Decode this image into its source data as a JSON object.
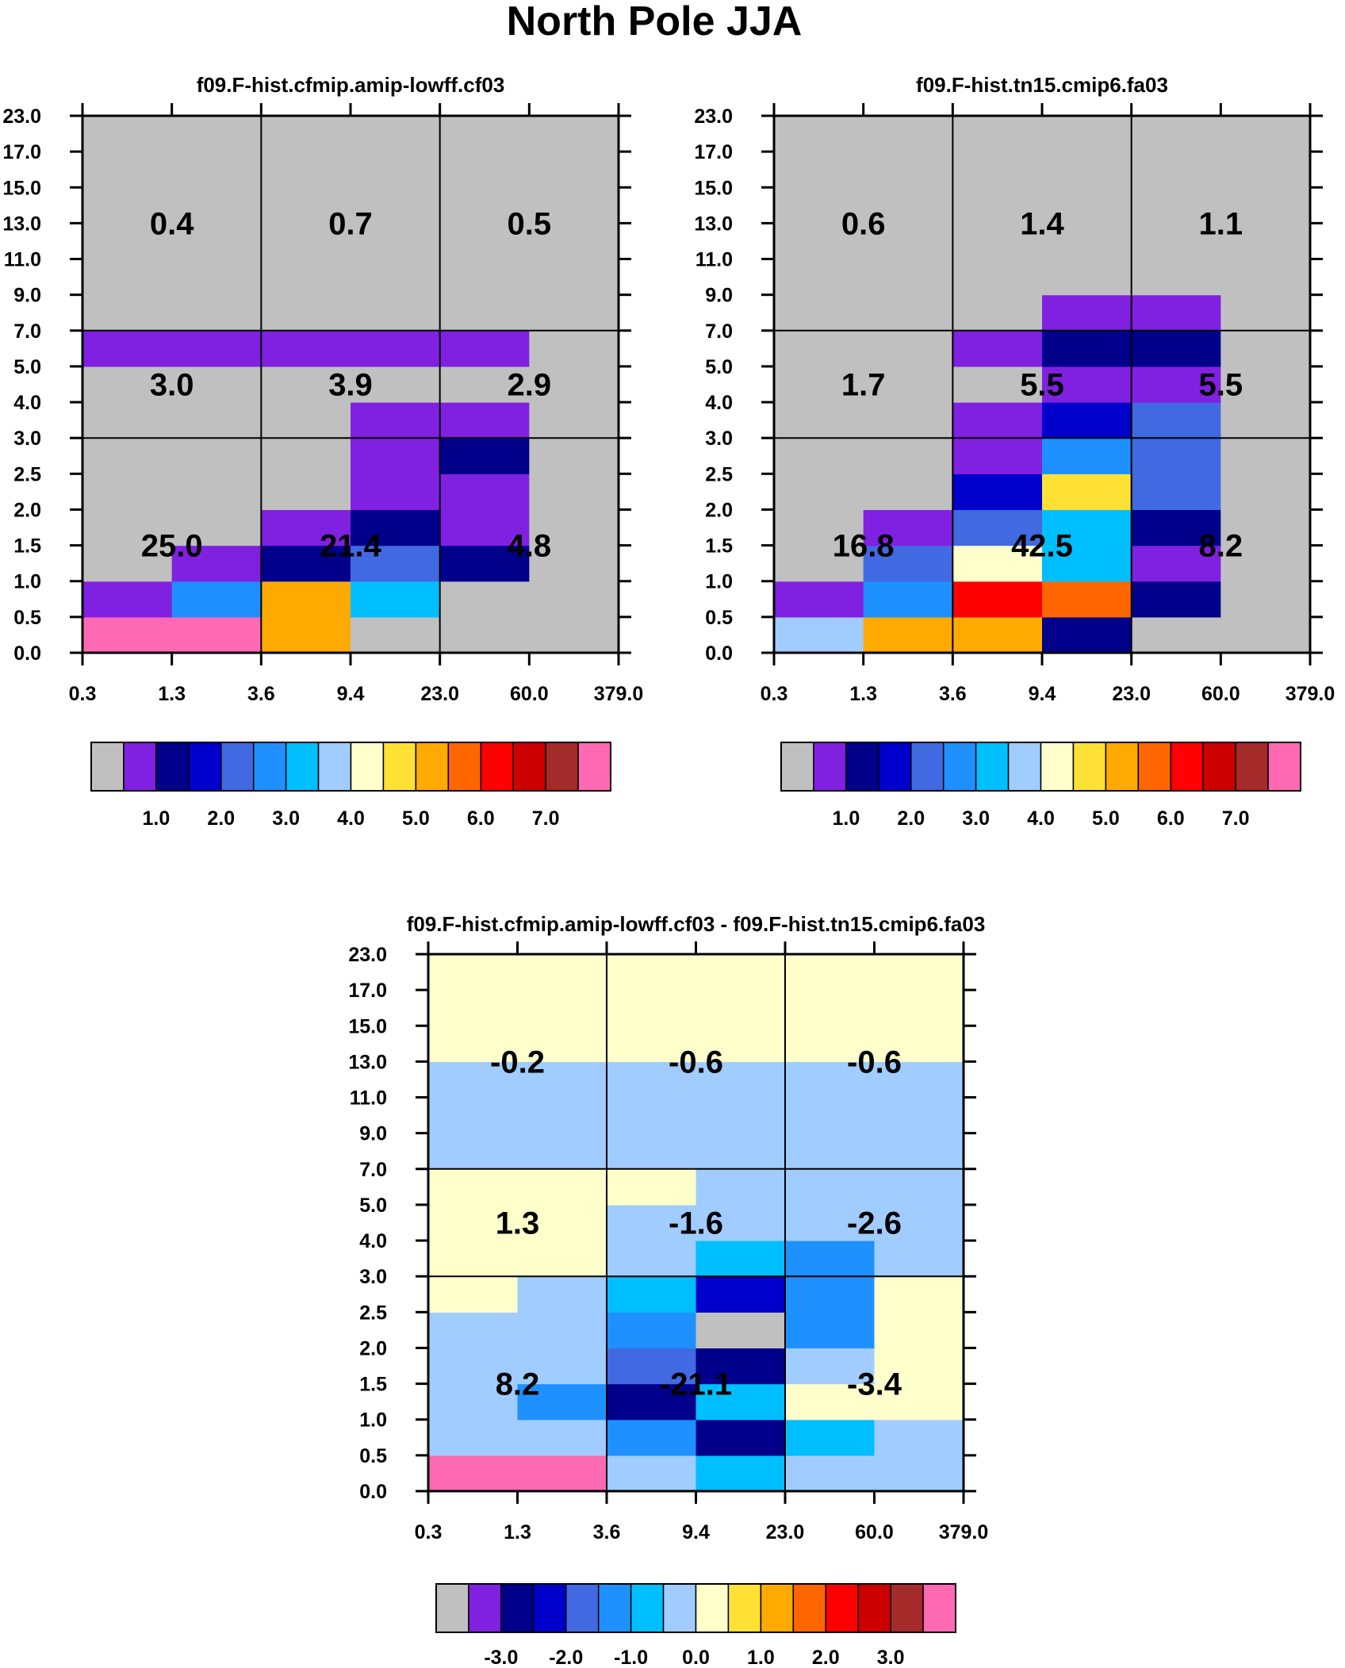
{
  "figure_title": "North Pole JJA",
  "palette": {
    "gray": "#C0C0C0",
    "violet": "#8020E0",
    "navy": "#00008B",
    "blue": "#0000CD",
    "royal": "#4169E1",
    "dodger": "#1E90FF",
    "sky": "#00BFFF",
    "light": "#A0CCFF",
    "cream": "#FFFFCC",
    "yellow": "#FFE135",
    "amber": "#FFAA00",
    "orange": "#FF6600",
    "red": "#FF0000",
    "crimson": "#CC0000",
    "brown": "#A52A2A",
    "pink": "#FF69B4"
  },
  "chart_data": [
    {
      "type": "heatmap",
      "title": "f09.F-hist.cfmip.amip-lowff.cf03",
      "x_tick_labels": [
        "0.3",
        "1.3",
        "3.6",
        "9.4",
        "23.0",
        "60.0",
        "379.0"
      ],
      "y_tick_labels": [
        "0.0",
        "0.5",
        "1.0",
        "1.5",
        "2.0",
        "2.5",
        "3.0",
        "4.0",
        "5.0",
        "7.0",
        "9.0",
        "11.0",
        "13.0",
        "15.0",
        "17.0",
        "23.0"
      ],
      "cells": [
        [
          "pink",
          "pink",
          "amber",
          "gray",
          "gray",
          "gray"
        ],
        [
          "violet",
          "dodger",
          "amber",
          "sky",
          "gray",
          "gray"
        ],
        [
          "gray",
          "violet",
          "navy",
          "royal",
          "navy",
          "gray"
        ],
        [
          "gray",
          "gray",
          "violet",
          "navy",
          "violet",
          "gray"
        ],
        [
          "gray",
          "gray",
          "gray",
          "violet",
          "violet",
          "gray"
        ],
        [
          "gray",
          "gray",
          "gray",
          "violet",
          "navy",
          "gray"
        ],
        [
          "gray",
          "gray",
          "gray",
          "violet",
          "violet",
          "gray"
        ],
        [
          "gray",
          "gray",
          "gray",
          "gray",
          "gray",
          "gray"
        ],
        [
          "violet",
          "violet",
          "violet",
          "violet",
          "violet",
          "gray"
        ],
        [
          "gray",
          "gray",
          "gray",
          "gray",
          "gray",
          "gray"
        ],
        [
          "gray",
          "gray",
          "gray",
          "gray",
          "gray",
          "gray"
        ],
        [
          "gray",
          "gray",
          "gray",
          "gray",
          "gray",
          "gray"
        ],
        [
          "gray",
          "gray",
          "gray",
          "gray",
          "gray",
          "gray"
        ],
        [
          "gray",
          "gray",
          "gray",
          "gray",
          "gray",
          "gray"
        ],
        [
          "gray",
          "gray",
          "gray",
          "gray",
          "gray",
          "gray"
        ]
      ],
      "region_totals": [
        {
          "label": "25.0",
          "col": 0,
          "band": "low"
        },
        {
          "label": "21.4",
          "col": 1,
          "band": "low"
        },
        {
          "label": "4.8",
          "col": 2,
          "band": "low"
        },
        {
          "label": "3.0",
          "col": 0,
          "band": "mid"
        },
        {
          "label": "3.9",
          "col": 1,
          "band": "mid"
        },
        {
          "label": "2.9",
          "col": 2,
          "band": "mid"
        },
        {
          "label": "0.4",
          "col": 0,
          "band": "high"
        },
        {
          "label": "0.7",
          "col": 1,
          "band": "high"
        },
        {
          "label": "0.5",
          "col": 2,
          "band": "high"
        }
      ],
      "colorbar": {
        "colors": [
          "gray",
          "violet",
          "navy",
          "blue",
          "royal",
          "dodger",
          "sky",
          "light",
          "cream",
          "yellow",
          "amber",
          "orange",
          "red",
          "crimson",
          "brown",
          "pink"
        ],
        "labels": [
          "1.0",
          "2.0",
          "3.0",
          "4.0",
          "5.0",
          "6.0",
          "7.0"
        ],
        "label_start_boundary": 2,
        "label_step": 2
      }
    },
    {
      "type": "heatmap",
      "title": "f09.F-hist.tn15.cmip6.fa03",
      "x_tick_labels": [
        "0.3",
        "1.3",
        "3.6",
        "9.4",
        "23.0",
        "60.0",
        "379.0"
      ],
      "y_tick_labels": [
        "0.0",
        "0.5",
        "1.0",
        "1.5",
        "2.0",
        "2.5",
        "3.0",
        "4.0",
        "5.0",
        "7.0",
        "9.0",
        "11.0",
        "13.0",
        "15.0",
        "17.0",
        "23.0"
      ],
      "cells": [
        [
          "light",
          "amber",
          "amber",
          "navy",
          "gray",
          "gray"
        ],
        [
          "violet",
          "dodger",
          "red",
          "orange",
          "navy",
          "gray"
        ],
        [
          "gray",
          "royal",
          "cream",
          "sky",
          "violet",
          "gray"
        ],
        [
          "gray",
          "violet",
          "royal",
          "sky",
          "navy",
          "gray"
        ],
        [
          "gray",
          "gray",
          "blue",
          "yellow",
          "royal",
          "gray"
        ],
        [
          "gray",
          "gray",
          "violet",
          "dodger",
          "royal",
          "gray"
        ],
        [
          "gray",
          "gray",
          "violet",
          "blue",
          "royal",
          "gray"
        ],
        [
          "gray",
          "gray",
          "gray",
          "violet",
          "violet",
          "gray"
        ],
        [
          "gray",
          "gray",
          "violet",
          "navy",
          "navy",
          "gray"
        ],
        [
          "gray",
          "gray",
          "gray",
          "violet",
          "violet",
          "gray"
        ],
        [
          "gray",
          "gray",
          "gray",
          "gray",
          "gray",
          "gray"
        ],
        [
          "gray",
          "gray",
          "gray",
          "gray",
          "gray",
          "gray"
        ],
        [
          "gray",
          "gray",
          "gray",
          "gray",
          "gray",
          "gray"
        ],
        [
          "gray",
          "gray",
          "gray",
          "gray",
          "gray",
          "gray"
        ],
        [
          "gray",
          "gray",
          "gray",
          "gray",
          "gray",
          "gray"
        ]
      ],
      "region_totals": [
        {
          "label": "16.8",
          "col": 0,
          "band": "low"
        },
        {
          "label": "42.5",
          "col": 1,
          "band": "low"
        },
        {
          "label": "8.2",
          "col": 2,
          "band": "low"
        },
        {
          "label": "1.7",
          "col": 0,
          "band": "mid"
        },
        {
          "label": "5.5",
          "col": 1,
          "band": "mid"
        },
        {
          "label": "5.5",
          "col": 2,
          "band": "mid"
        },
        {
          "label": "0.6",
          "col": 0,
          "band": "high"
        },
        {
          "label": "1.4",
          "col": 1,
          "band": "high"
        },
        {
          "label": "1.1",
          "col": 2,
          "band": "high"
        }
      ],
      "colorbar": {
        "colors": [
          "gray",
          "violet",
          "navy",
          "blue",
          "royal",
          "dodger",
          "sky",
          "light",
          "cream",
          "yellow",
          "amber",
          "orange",
          "red",
          "crimson",
          "brown",
          "pink"
        ],
        "labels": [
          "1.0",
          "2.0",
          "3.0",
          "4.0",
          "5.0",
          "6.0",
          "7.0"
        ],
        "label_start_boundary": 2,
        "label_step": 2
      }
    },
    {
      "type": "heatmap",
      "title": "f09.F-hist.cfmip.amip-lowff.cf03 - f09.F-hist.tn15.cmip6.fa03",
      "x_tick_labels": [
        "0.3",
        "1.3",
        "3.6",
        "9.4",
        "23.0",
        "60.0",
        "379.0"
      ],
      "y_tick_labels": [
        "0.0",
        "0.5",
        "1.0",
        "1.5",
        "2.0",
        "2.5",
        "3.0",
        "4.0",
        "5.0",
        "7.0",
        "9.0",
        "11.0",
        "13.0",
        "15.0",
        "17.0",
        "23.0"
      ],
      "cells": [
        [
          "pink",
          "pink",
          "light",
          "sky",
          "light",
          "light"
        ],
        [
          "light",
          "light",
          "dodger",
          "navy",
          "sky",
          "light"
        ],
        [
          "light",
          "dodger",
          "navy",
          "sky",
          "cream",
          "cream"
        ],
        [
          "light",
          "light",
          "royal",
          "navy",
          "light",
          "cream"
        ],
        [
          "light",
          "light",
          "dodger",
          "gray",
          "dodger",
          "cream"
        ],
        [
          "cream",
          "light",
          "sky",
          "blue",
          "dodger",
          "cream"
        ],
        [
          "cream",
          "cream",
          "light",
          "sky",
          "dodger",
          "light"
        ],
        [
          "cream",
          "cream",
          "light",
          "light",
          "light",
          "light"
        ],
        [
          "cream",
          "cream",
          "cream",
          "light",
          "light",
          "light"
        ],
        [
          "light",
          "light",
          "light",
          "light",
          "light",
          "light"
        ],
        [
          "light",
          "light",
          "light",
          "light",
          "light",
          "light"
        ],
        [
          "light",
          "light",
          "light",
          "light",
          "light",
          "light"
        ],
        [
          "cream",
          "cream",
          "cream",
          "cream",
          "cream",
          "cream"
        ],
        [
          "cream",
          "cream",
          "cream",
          "cream",
          "cream",
          "cream"
        ],
        [
          "cream",
          "cream",
          "cream",
          "cream",
          "cream",
          "cream"
        ]
      ],
      "region_totals": [
        {
          "label": "8.2",
          "col": 0,
          "band": "low"
        },
        {
          "label": "-21.1",
          "col": 1,
          "band": "low"
        },
        {
          "label": "-3.4",
          "col": 2,
          "band": "low"
        },
        {
          "label": "1.3",
          "col": 0,
          "band": "mid"
        },
        {
          "label": "-1.6",
          "col": 1,
          "band": "mid"
        },
        {
          "label": "-2.6",
          "col": 2,
          "band": "mid"
        },
        {
          "label": "-0.2",
          "col": 0,
          "band": "high"
        },
        {
          "label": "-0.6",
          "col": 1,
          "band": "high"
        },
        {
          "label": "-0.6",
          "col": 2,
          "band": "high"
        }
      ],
      "colorbar": {
        "colors": [
          "gray",
          "violet",
          "navy",
          "blue",
          "royal",
          "dodger",
          "sky",
          "light",
          "cream",
          "yellow",
          "amber",
          "orange",
          "red",
          "crimson",
          "brown",
          "pink"
        ],
        "labels": [
          "-3.0",
          "-2.0",
          "-1.0",
          "0.0",
          "1.0",
          "2.0",
          "3.0"
        ],
        "label_start_boundary": 2,
        "label_step": 2
      }
    }
  ]
}
